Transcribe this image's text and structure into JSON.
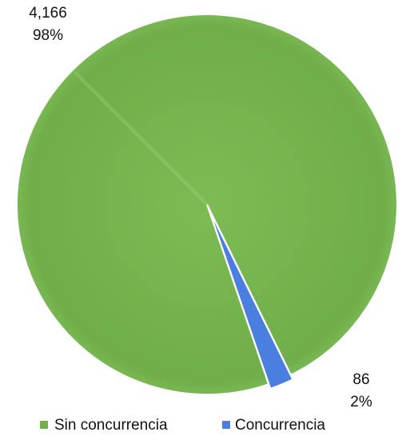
{
  "chart_data": {
    "type": "pie",
    "title": "",
    "slices": [
      {
        "name": "Sin concurrencia",
        "value": 4166,
        "percent_label": "98%",
        "value_label": "4,166",
        "color": "#72b04c"
      },
      {
        "name": "Concurrencia",
        "value": 86,
        "percent_label": "2%",
        "value_label": "86",
        "color": "#4a7fe0"
      }
    ],
    "legend": {
      "placement": "bottom",
      "items": [
        "Sin concurrencia",
        "Concurrencia"
      ]
    }
  }
}
